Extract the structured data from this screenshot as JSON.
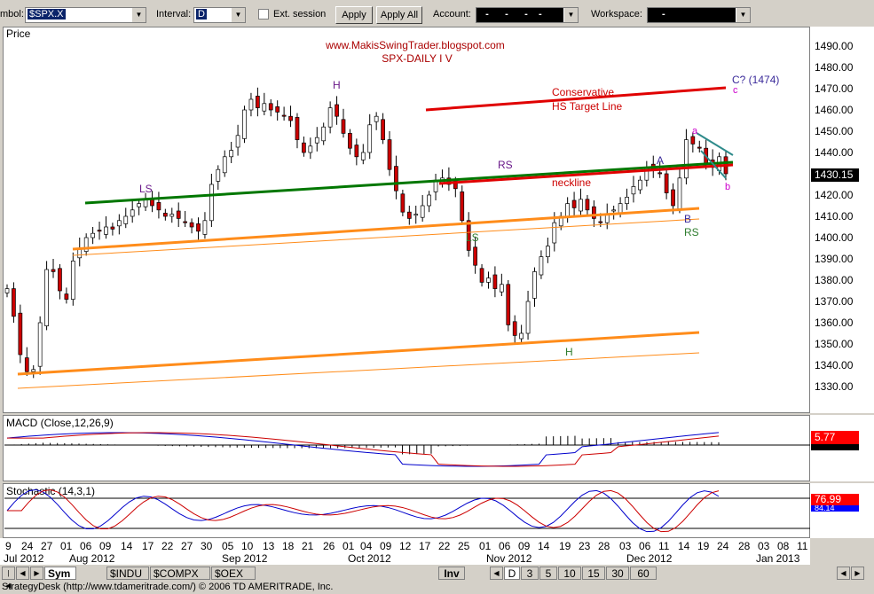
{
  "toolbar": {
    "symbol_label": "mbol:",
    "symbol_value": "$SPX.X",
    "interval_label": "Interval:",
    "interval_value": "D",
    "ext_session_label": "Ext. session",
    "apply_label": "Apply",
    "apply_all_label": "Apply All",
    "account_label": "Account:",
    "account_value": "  -      -      -    -",
    "workspace_label": "Workspace:",
    "workspace_value": "-"
  },
  "price_panel": {
    "title": "Price",
    "website": "www.MakisSwingTrader.blogspot.com",
    "chart_title": "SPX-DAILY I V",
    "current_price": "1430.15",
    "annotations": {
      "h_top": "H",
      "ls_left": "LS",
      "conservative_1": "Conservative",
      "conservative_2": "HS Target Line",
      "c_target": "C? (1474)",
      "c_small": "c",
      "rs_upper": "RS",
      "neckline": "neckline",
      "a_upper": "A",
      "a_small": "a",
      "b_small": "b",
      "ls_lower": "LS",
      "b_upper": "B",
      "rs_lower": "RS",
      "h_bottom": "H"
    },
    "y_ticks": [
      "1490.00",
      "1480.00",
      "1470.00",
      "1460.00",
      "1450.00",
      "1440.00",
      "1420.00",
      "1410.00",
      "1400.00",
      "1390.00",
      "1380.00",
      "1370.00",
      "1360.00",
      "1350.00",
      "1340.00",
      "1330.00"
    ]
  },
  "macd_panel": {
    "title": "MACD (Close,12,26,9)",
    "value": "5.77"
  },
  "stoch_panel": {
    "title": "Stochastic (14,3,1)",
    "value": "76.99",
    "value2": "84.14"
  },
  "x_axis": {
    "day_labels": [
      "9",
      "24",
      "27",
      "01",
      "06",
      "09",
      "14",
      "17",
      "22",
      "27",
      "30",
      "05",
      "10",
      "13",
      "18",
      "21",
      "26",
      "01",
      "04",
      "09",
      "12",
      "17",
      "22",
      "25",
      "01",
      "06",
      "09",
      "14",
      "19",
      "23",
      "28",
      "03",
      "06",
      "11",
      "14",
      "19",
      "24",
      "28",
      "03",
      "08",
      "11"
    ],
    "month_labels": [
      "Jul 2012",
      "Aug 2012",
      "Sep 2012",
      "Oct 2012",
      "Nov 2012",
      "Dec 2012",
      "Jan 2013"
    ]
  },
  "tabs": {
    "sym": "Sym",
    "indu": "$INDU",
    "compx": "$COMPX",
    "oex": "$OEX",
    "inv": "Inv",
    "d": "D",
    "t3": "3",
    "t5": "5",
    "t10": "10",
    "t15": "15",
    "t30": "30",
    "t60": "60"
  },
  "status_bar": "StrategyDesk (http://www.tdameritrade.com/) © 2006 TD AMERITRADE, Inc.",
  "colors": {
    "up_candle": "#ffffff",
    "down_candle": "#cc0000",
    "neckline_green": "#007700",
    "orange_channel": "#ff8c1a",
    "target_red": "#e00000",
    "macd_red": "#ff0000",
    "stoch_blue": "#0000cc"
  },
  "chart_data": {
    "type": "candlestick",
    "title": "SPX-DAILY I V",
    "ylim": [
      1325,
      1495
    ],
    "dates": [
      "Jul 2012",
      "Aug 2012",
      "Sep 2012",
      "Oct 2012",
      "Nov 2012",
      "Dec 2012",
      "Jan 2013"
    ],
    "key_levels": {
      "last_close": 1430.15,
      "hs_target": 1474,
      "h_high": 1470,
      "nov_low": 1343
    }
  }
}
